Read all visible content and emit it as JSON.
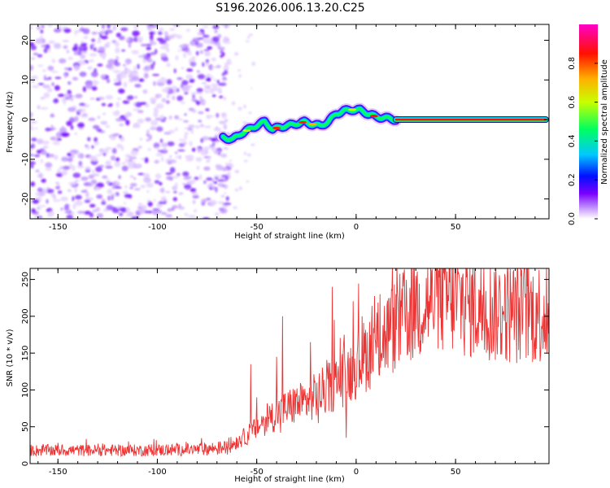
{
  "title": "S196.2026.006.13.20.C25",
  "chart_data": [
    {
      "type": "heatmap",
      "name": "spectrogram",
      "xlabel": "Height of straight line (km)",
      "ylabel": "Frequency (Hz)",
      "xlim": [
        -164,
        97
      ],
      "ylim": [
        -25,
        24
      ],
      "xticks": [
        -150,
        -100,
        -50,
        0,
        50
      ],
      "yticks": [
        -20,
        -10,
        0,
        10,
        20
      ],
      "noise_region_x": [
        -164,
        -67
      ],
      "signal_ridge": [
        {
          "x": -67,
          "y": -4.5
        },
        {
          "x": -62,
          "y": -5
        },
        {
          "x": -58,
          "y": -3.5
        },
        {
          "x": -54,
          "y": -2.5
        },
        {
          "x": -50,
          "y": -1.5
        },
        {
          "x": -46,
          "y": -0.5
        },
        {
          "x": -42,
          "y": -2.5
        },
        {
          "x": -38,
          "y": -1.8
        },
        {
          "x": -34,
          "y": -1.5
        },
        {
          "x": -30,
          "y": -1
        },
        {
          "x": -26,
          "y": -0.6
        },
        {
          "x": -22,
          "y": -1.2
        },
        {
          "x": -18,
          "y": -1.6
        },
        {
          "x": -14,
          "y": -0.5
        },
        {
          "x": -10,
          "y": 1.5
        },
        {
          "x": -6,
          "y": 2.2
        },
        {
          "x": -2,
          "y": 2.5
        },
        {
          "x": 2,
          "y": 2.4
        },
        {
          "x": 6,
          "y": 1.5
        },
        {
          "x": 10,
          "y": 0.7
        },
        {
          "x": 14,
          "y": 0.5
        },
        {
          "x": 20,
          "y": 0
        },
        {
          "x": 97,
          "y": 0
        }
      ],
      "carrier_segment": {
        "x_start": 20,
        "x_end": 97,
        "y": 0
      },
      "colorbar": {
        "label": "Normalized spectral amplitude",
        "ticks": [
          "0.0",
          "0.2",
          "0.4",
          "0.6",
          "0.8"
        ],
        "tick_values": [
          0,
          0.2,
          0.4,
          0.6,
          0.8
        ],
        "range": [
          0,
          1
        ],
        "colors": [
          "#ffffff",
          "#c8a0ff",
          "#7a00ff",
          "#0010ff",
          "#00c8ff",
          "#00ff60",
          "#c8ff00",
          "#ffb000",
          "#ff1000",
          "#ff00c8"
        ]
      }
    },
    {
      "type": "line",
      "name": "snr",
      "xlabel": "Height of straight line (km)",
      "ylabel": "SNR (10 * v/v)",
      "xlim": [
        -164,
        97
      ],
      "ylim": [
        0,
        265
      ],
      "xticks": [
        -150,
        -100,
        -50,
        0,
        50
      ],
      "yticks": [
        0,
        50,
        100,
        150,
        200,
        250
      ],
      "color": "#ee3333",
      "envelope": [
        {
          "x": -164,
          "y": 18
        },
        {
          "x": -140,
          "y": 18
        },
        {
          "x": -110,
          "y": 18
        },
        {
          "x": -80,
          "y": 19
        },
        {
          "x": -65,
          "y": 22
        },
        {
          "x": -55,
          "y": 38
        },
        {
          "x": -45,
          "y": 60
        },
        {
          "x": -35,
          "y": 75
        },
        {
          "x": -25,
          "y": 85
        },
        {
          "x": -15,
          "y": 100
        },
        {
          "x": -5,
          "y": 120
        },
        {
          "x": 5,
          "y": 148
        },
        {
          "x": 15,
          "y": 175
        },
        {
          "x": 25,
          "y": 200
        },
        {
          "x": 35,
          "y": 218
        },
        {
          "x": 45,
          "y": 225
        },
        {
          "x": 55,
          "y": 218
        },
        {
          "x": 65,
          "y": 210
        },
        {
          "x": 80,
          "y": 205
        },
        {
          "x": 97,
          "y": 205
        }
      ],
      "spikes": [
        {
          "x": -53,
          "y": 135
        },
        {
          "x": -50,
          "y": 90
        },
        {
          "x": -40,
          "y": 145
        },
        {
          "x": -37,
          "y": 200
        },
        {
          "x": -31,
          "y": 100
        },
        {
          "x": -23,
          "y": 165
        },
        {
          "x": -12,
          "y": 240
        },
        {
          "x": -11,
          "y": 195
        },
        {
          "x": -6,
          "y": 175
        },
        {
          "x": 3,
          "y": 200
        },
        {
          "x": 12,
          "y": 230
        },
        {
          "x": 30,
          "y": 255
        },
        {
          "x": 38,
          "y": 262
        },
        {
          "x": 44,
          "y": 258
        }
      ],
      "dips": [
        {
          "x": -5,
          "y": 35
        },
        {
          "x": -19,
          "y": 55
        },
        {
          "x": -38,
          "y": 42
        }
      ]
    }
  ]
}
